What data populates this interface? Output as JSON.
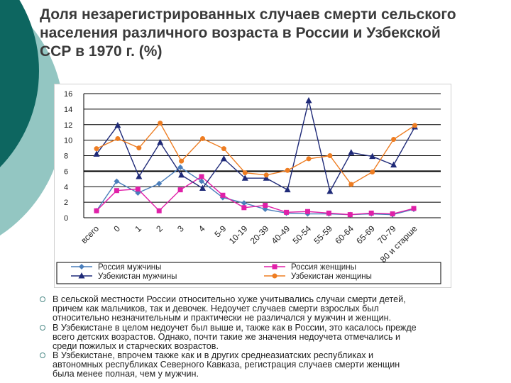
{
  "title_lines": [
    "Доля незарегистрированных случаев смерти сельского",
    "населения различного возраста в России и Узбекской",
    "ССР в  1970 г. (%)"
  ],
  "colors": {
    "background_circle_dark": "#0d6660",
    "background_circle_light": "#93c6c2",
    "bullet": "#4d8a87"
  },
  "chart_data": {
    "type": "line",
    "title": "",
    "xlabel": "",
    "ylabel": "",
    "ylim": [
      0,
      16
    ],
    "yticks": [
      0,
      2,
      4,
      6,
      8,
      10,
      12,
      14,
      16
    ],
    "grid": "horizontal",
    "legend_position": "bottom",
    "categories": [
      "всего",
      "0",
      "1",
      "2",
      "3",
      "4",
      "5-9",
      "10-19",
      "20-39",
      "40-49",
      "50-54",
      "55-59",
      "60-64",
      "65-69",
      "70-79",
      "80 и старше"
    ],
    "series": [
      {
        "name": "Россия мужчины",
        "color": "#4a7ebb",
        "marker": "diamond",
        "x": [
          0,
          0.95,
          1.95,
          2.95,
          3.95,
          4.95,
          5.95,
          6.95,
          7.95,
          8.95,
          9.95,
          10.95,
          11.95,
          12.95,
          13.95,
          14.95
        ],
        "values": [
          0.9,
          4.7,
          3.2,
          4.4,
          6.5,
          4.7,
          2.6,
          1.9,
          1.1,
          0.6,
          0.5,
          0.5,
          0.4,
          0.5,
          0.4,
          1.1
        ]
      },
      {
        "name": "Россия женщины",
        "color": "#e020a8",
        "marker": "square",
        "x": [
          0,
          0.95,
          1.95,
          2.95,
          3.95,
          4.95,
          5.95,
          6.95,
          7.95,
          8.95,
          9.95,
          10.95,
          11.95,
          12.95,
          13.95,
          14.95
        ],
        "values": [
          0.9,
          3.5,
          3.7,
          0.9,
          3.6,
          5.3,
          2.9,
          1.3,
          1.6,
          0.7,
          0.8,
          0.6,
          0.4,
          0.6,
          0.5,
          1.2
        ]
      },
      {
        "name": "Узбекистан мужчины",
        "color": "#1f2a78",
        "marker": "triangle",
        "x": [
          0,
          1,
          2,
          3,
          4,
          5,
          6,
          7,
          8,
          9,
          10,
          11,
          12,
          13,
          14,
          15
        ],
        "values": [
          8.2,
          11.9,
          5.3,
          9.7,
          5.5,
          3.8,
          7.6,
          5.1,
          5.1,
          3.6,
          15.1,
          3.4,
          8.4,
          7.9,
          6.8,
          11.7
        ]
      },
      {
        "name": "Узбекистан женщины",
        "color": "#ee7d22",
        "marker": "circle",
        "x": [
          0,
          1,
          2,
          3,
          4,
          5,
          6,
          7,
          8,
          9,
          10,
          11,
          12,
          13,
          14,
          15
        ],
        "values": [
          8.9,
          10.2,
          9.0,
          12.2,
          7.3,
          10.2,
          8.9,
          5.8,
          5.5,
          6.1,
          7.6,
          8.0,
          4.3,
          5.9,
          10.1,
          11.9
        ]
      }
    ]
  },
  "bullets": [
    [
      "В сельской местности России относительно хуже учитывались случаи смерти детей,",
      "причем как мальчиков, так и девочек. Недоучет случаев смерти взрослых был",
      "относительно незначительным и практически не различался у мужчин и женщин."
    ],
    [
      "В Узбекистане в целом недоучет был выше и, также как в России, это касалось прежде",
      "всего детских возрастов. Однако, почти такие же значения недоучета отмечались и",
      "среди пожилых и старческих возрастов."
    ],
    [
      "В Узбекистане, впрочем также как и в других среднеазиатских республиках и",
      "автономных республиках Северного Кавказа, регистрация случаев смерти женщин",
      "была менее полная, чем у мужчин."
    ]
  ]
}
